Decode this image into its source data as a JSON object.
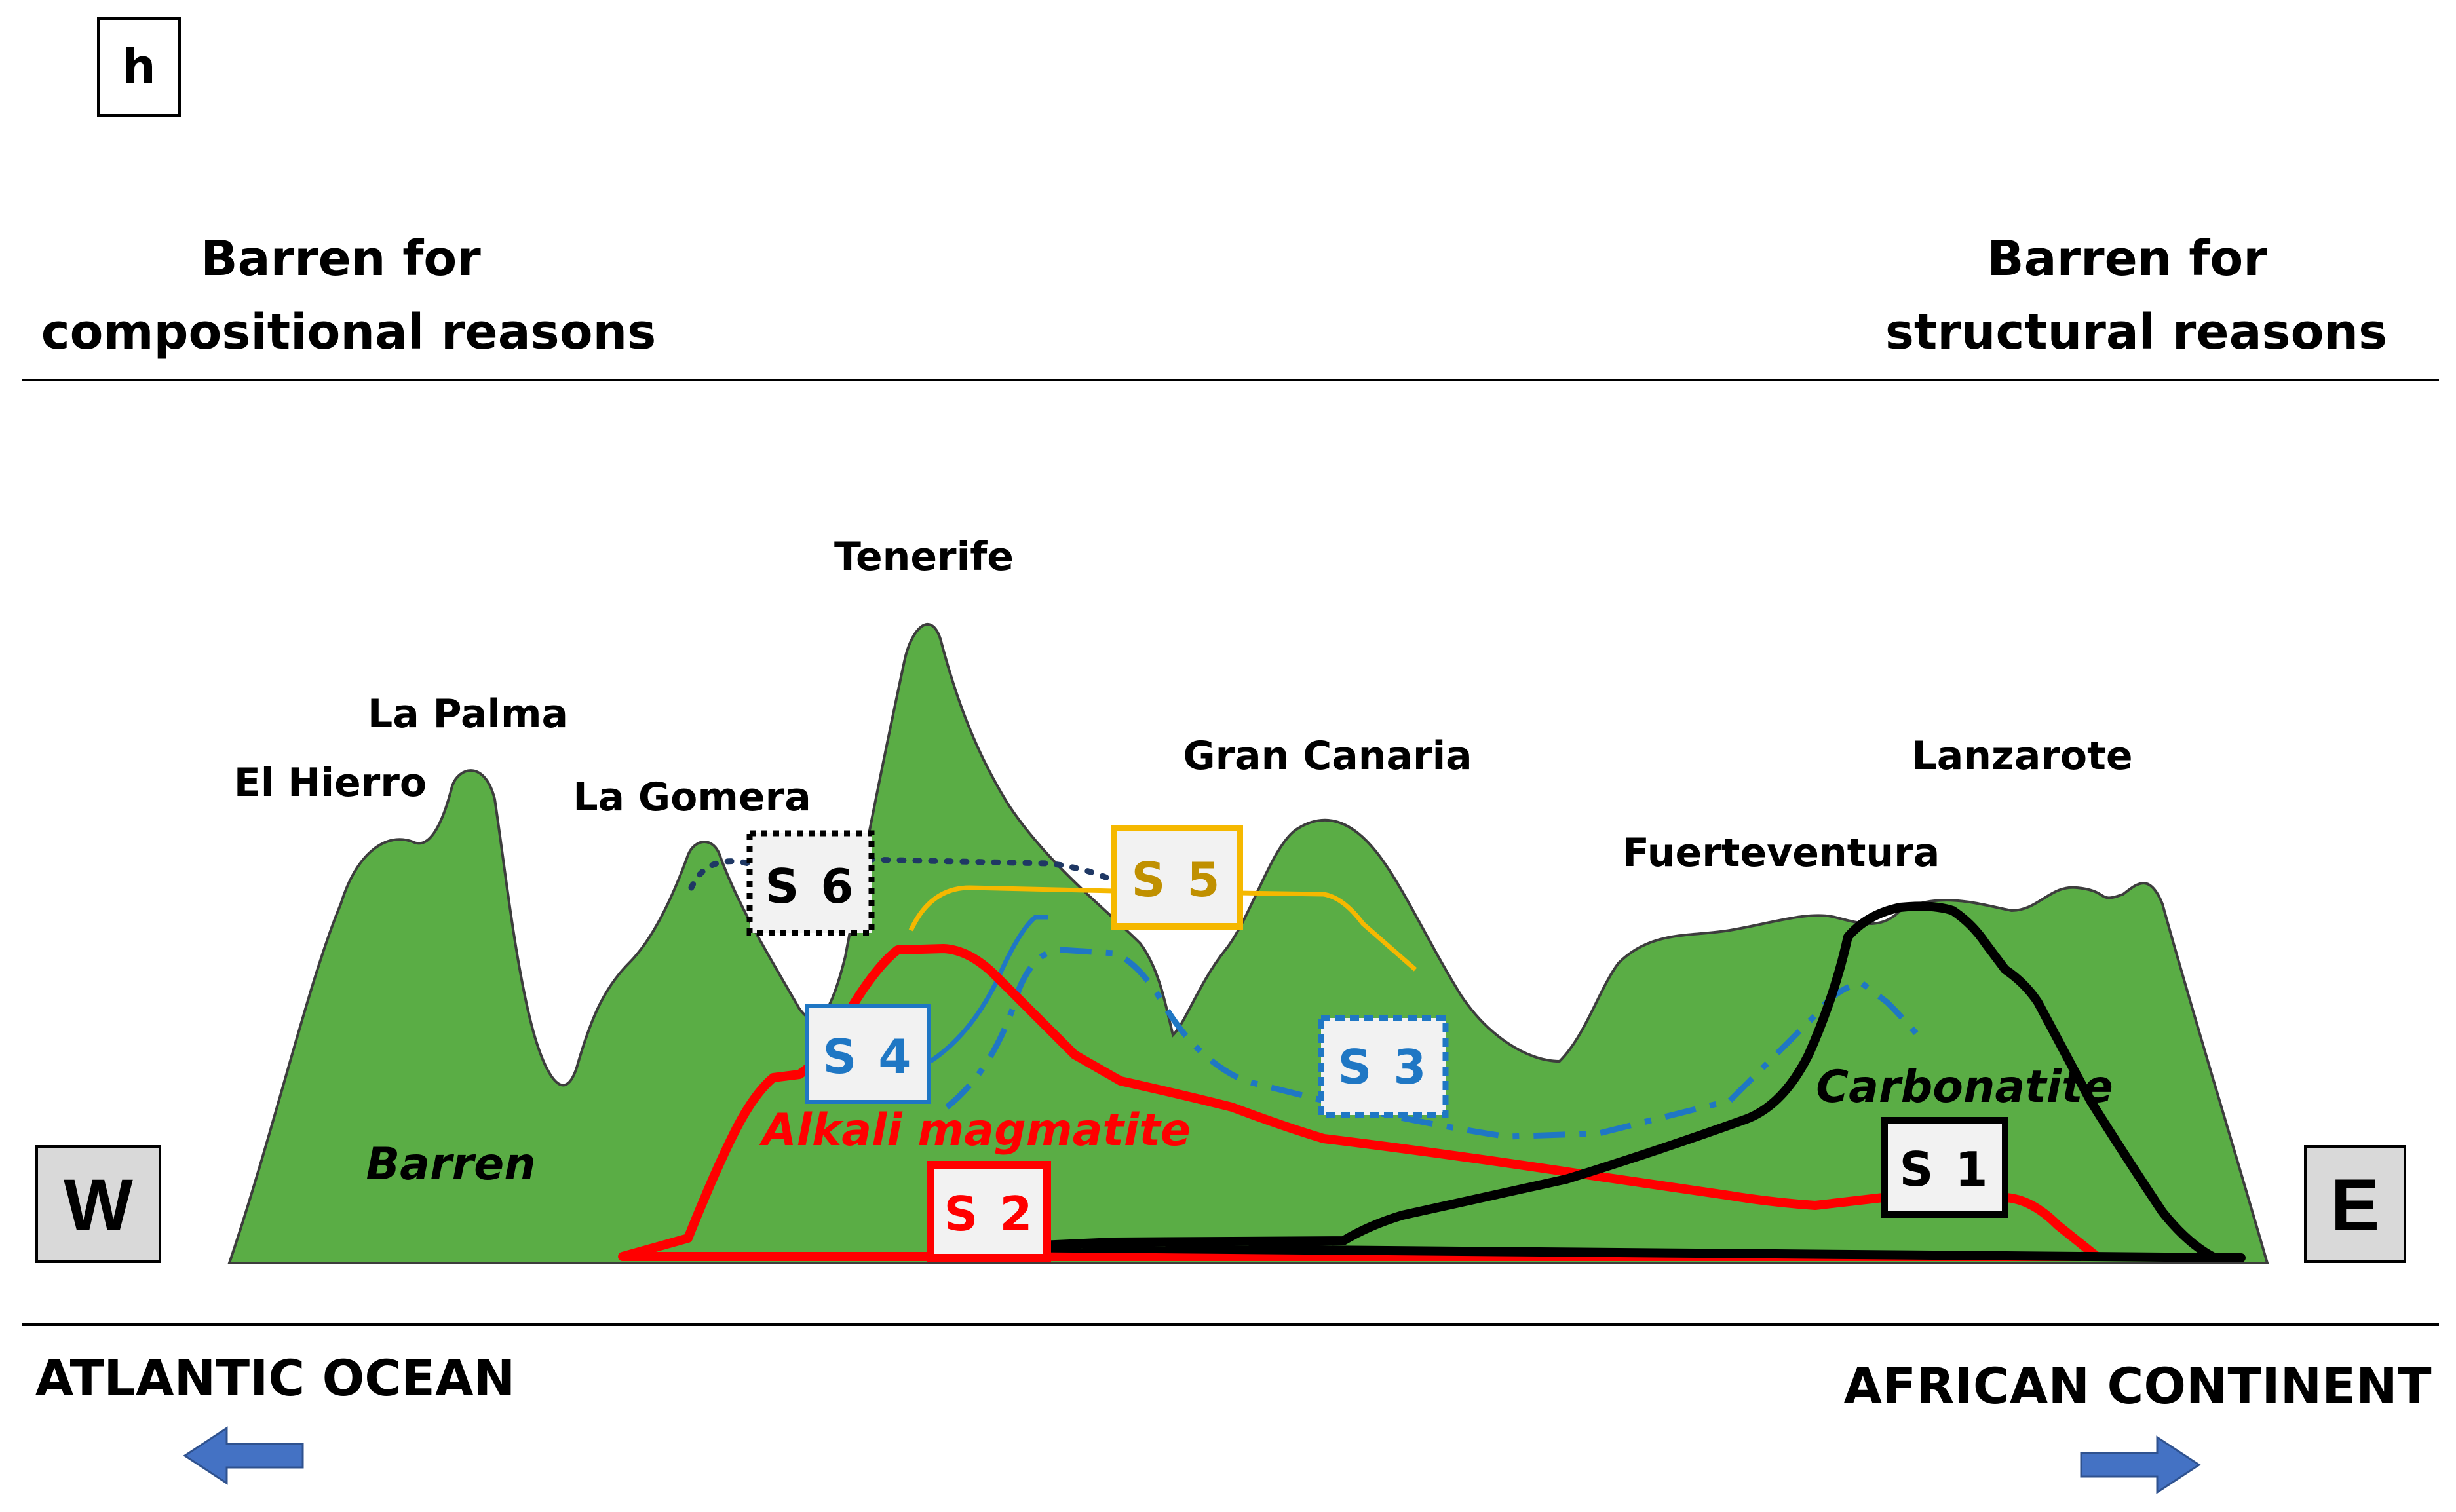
{
  "panel_label": "h",
  "header": {
    "left_line1": "Barren for",
    "left_line2": "compositional reasons",
    "right_line1": "Barren for",
    "right_line2": "structural reasons"
  },
  "islands": {
    "el_hierro": "El Hierro",
    "la_palma": "La Palma",
    "la_gomera": "La Gomera",
    "tenerife": "Tenerife",
    "gran_canaria": "Gran Canaria",
    "fuerteventura": "Fuerteventura",
    "lanzarote": "Lanzarote"
  },
  "zones": {
    "barren": "Barren",
    "alkali": "Alkali magmatite",
    "carbonatite": "Carbonatite"
  },
  "series": {
    "s1": "S 1",
    "s2": "S 2",
    "s3": "S 3",
    "s4": "S 4",
    "s5": "S 5",
    "s6": "S 6"
  },
  "compass": {
    "west": "W",
    "east": "E"
  },
  "directions": {
    "left": "ATLANTIC OCEAN",
    "right": "AFRICAN CONTINENT"
  },
  "colors": {
    "island_fill": "#5aad45",
    "s1": "#000000",
    "s2": "#ff0000",
    "s3": "#1f77c4",
    "s4": "#1f77c4",
    "s5": "#f5b800",
    "s5_text": "#c09000",
    "s6": "#1f3864",
    "arrow": "#4472c4",
    "box_fill": "#f2f2f2",
    "compass_fill": "#d9d9d9"
  },
  "icons": {
    "left_arrow": "arrow-left-icon",
    "right_arrow": "arrow-right-icon"
  }
}
